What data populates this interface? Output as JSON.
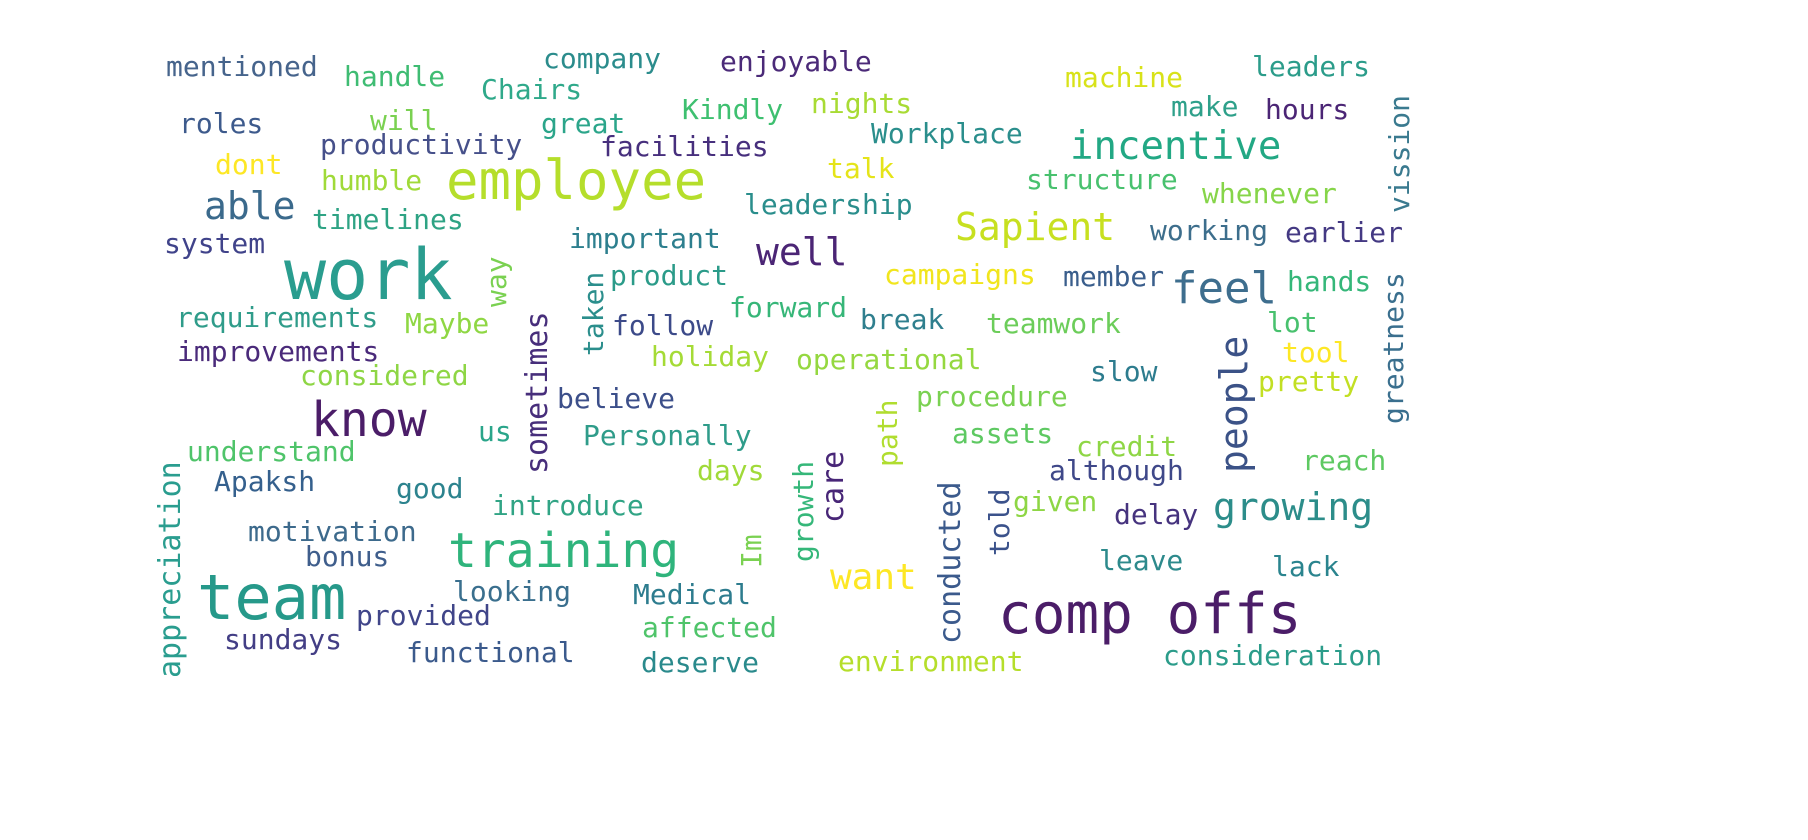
{
  "cloud": {
    "words": [
      {
        "text": "work",
        "color": "#2a9d8f"
      },
      {
        "text": "comp offs",
        "color": "#4b1d68"
      },
      {
        "text": "employee",
        "color": "#b5de2b"
      },
      {
        "text": "team",
        "color": "#26998a"
      },
      {
        "text": "training",
        "color": "#2fb47c"
      },
      {
        "text": "know",
        "color": "#4b1d68"
      },
      {
        "text": "feel",
        "color": "#3e6e8e"
      },
      {
        "text": "incentive",
        "color": "#22a884"
      },
      {
        "text": "Sapient",
        "color": "#c7e020"
      },
      {
        "text": "well",
        "color": "#4b2575"
      },
      {
        "text": "able",
        "color": "#3b6a8c"
      },
      {
        "text": "growing",
        "color": "#2c8d8a"
      },
      {
        "text": "people",
        "color": "#3b5287"
      },
      {
        "text": "want",
        "color": "#fde725"
      },
      {
        "text": "mentioned",
        "color": "#46648c"
      },
      {
        "text": "handle",
        "color": "#3fbc73"
      },
      {
        "text": "company",
        "color": "#2b8c8c"
      },
      {
        "text": "enjoyable",
        "color": "#4b2a78"
      },
      {
        "text": "machine",
        "color": "#d8e219"
      },
      {
        "text": "leaders",
        "color": "#2b9c8a"
      },
      {
        "text": "Chairs",
        "color": "#2fa98a"
      },
      {
        "text": "Kindly",
        "color": "#3ec070"
      },
      {
        "text": "nights",
        "color": "#a8db34"
      },
      {
        "text": "make",
        "color": "#2ea08a"
      },
      {
        "text": "hours",
        "color": "#4b2575"
      },
      {
        "text": "vission",
        "color": "#3a7a8f"
      },
      {
        "text": "roles",
        "color": "#3d5a8c"
      },
      {
        "text": "will",
        "color": "#7ad151"
      },
      {
        "text": "productivity",
        "color": "#46508a"
      },
      {
        "text": "great",
        "color": "#2ba58a"
      },
      {
        "text": "Workplace",
        "color": "#2a8e8c"
      },
      {
        "text": "facilities",
        "color": "#472f7d"
      },
      {
        "text": "dont",
        "color": "#fde725"
      },
      {
        "text": "humble",
        "color": "#a0da39"
      },
      {
        "text": "talk",
        "color": "#e5e419"
      },
      {
        "text": "structure",
        "color": "#48c16e"
      },
      {
        "text": "whenever",
        "color": "#86d549"
      },
      {
        "text": "leadership",
        "color": "#2a8e8c"
      },
      {
        "text": "timelines",
        "color": "#2ea384"
      },
      {
        "text": "system",
        "color": "#40438a"
      },
      {
        "text": "important",
        "color": "#2d7f8e"
      },
      {
        "text": "working",
        "color": "#3d6e8c"
      },
      {
        "text": "earlier",
        "color": "#443983"
      },
      {
        "text": "campaigns",
        "color": "#f1e51d"
      },
      {
        "text": "member",
        "color": "#3a5e8c"
      },
      {
        "text": "way",
        "color": "#7ad151"
      },
      {
        "text": "product",
        "color": "#2b9b89"
      },
      {
        "text": "taken",
        "color": "#2b8e8c"
      },
      {
        "text": "hands",
        "color": "#35b779"
      },
      {
        "text": "greatness",
        "color": "#3a6f8e"
      },
      {
        "text": "requirements",
        "color": "#2f9c8a"
      },
      {
        "text": "Maybe",
        "color": "#8fd744"
      },
      {
        "text": "follow",
        "color": "#3c4a89"
      },
      {
        "text": "forward",
        "color": "#36b678"
      },
      {
        "text": "break",
        "color": "#2f7f8e"
      },
      {
        "text": "teamwork",
        "color": "#6ccd5a"
      },
      {
        "text": "lot",
        "color": "#48c16e"
      },
      {
        "text": "improvements",
        "color": "#4a2a7a"
      },
      {
        "text": "sometimes",
        "color": "#472e7b"
      },
      {
        "text": "holiday",
        "color": "#a5db36"
      },
      {
        "text": "operational",
        "color": "#95d840"
      },
      {
        "text": "slow",
        "color": "#2d7c8e"
      },
      {
        "text": "tool",
        "color": "#fde725"
      },
      {
        "text": "considered",
        "color": "#8ed645"
      },
      {
        "text": "pretty",
        "color": "#c2df23"
      },
      {
        "text": "believe",
        "color": "#3c4f8a"
      },
      {
        "text": "procedure",
        "color": "#7ad151"
      },
      {
        "text": "path",
        "color": "#b0dd2f"
      },
      {
        "text": "us",
        "color": "#2aa58a"
      },
      {
        "text": "Personally",
        "color": "#2f9c8a"
      },
      {
        "text": "assets",
        "color": "#5ec962"
      },
      {
        "text": "credit",
        "color": "#8ed645"
      },
      {
        "text": "understand",
        "color": "#4fc46a"
      },
      {
        "text": "although",
        "color": "#3f4889"
      },
      {
        "text": "reach",
        "color": "#5ec962"
      },
      {
        "text": "days",
        "color": "#a0da39"
      },
      {
        "text": "care",
        "color": "#482677"
      },
      {
        "text": "appreciation",
        "color": "#2a9d8f"
      },
      {
        "text": "Apaksh",
        "color": "#35608d"
      },
      {
        "text": "good",
        "color": "#2c838e"
      },
      {
        "text": "growth",
        "color": "#35b779"
      },
      {
        "text": "told",
        "color": "#3b528b"
      },
      {
        "text": "given",
        "color": "#8ed645"
      },
      {
        "text": "delay",
        "color": "#46337e"
      },
      {
        "text": "introduce",
        "color": "#31a485"
      },
      {
        "text": "conducted",
        "color": "#3b5a8c"
      },
      {
        "text": "motivation",
        "color": "#3d6a8c"
      },
      {
        "text": "bonus",
        "color": "#3f5e8c"
      },
      {
        "text": "Im",
        "color": "#7ad151"
      },
      {
        "text": "leave",
        "color": "#2d8a8c"
      },
      {
        "text": "lack",
        "color": "#2a848e"
      },
      {
        "text": "looking",
        "color": "#3a6f8e"
      },
      {
        "text": "Medical",
        "color": "#2d7c8e"
      },
      {
        "text": "provided",
        "color": "#404589"
      },
      {
        "text": "affected",
        "color": "#4fc46a"
      },
      {
        "text": "sundays",
        "color": "#433e85"
      },
      {
        "text": "functional",
        "color": "#3b5a8c"
      },
      {
        "text": "deserve",
        "color": "#2a8a8c"
      },
      {
        "text": "environment",
        "color": "#b5de2b"
      },
      {
        "text": "consideration",
        "color": "#2b9c8a"
      }
    ]
  }
}
